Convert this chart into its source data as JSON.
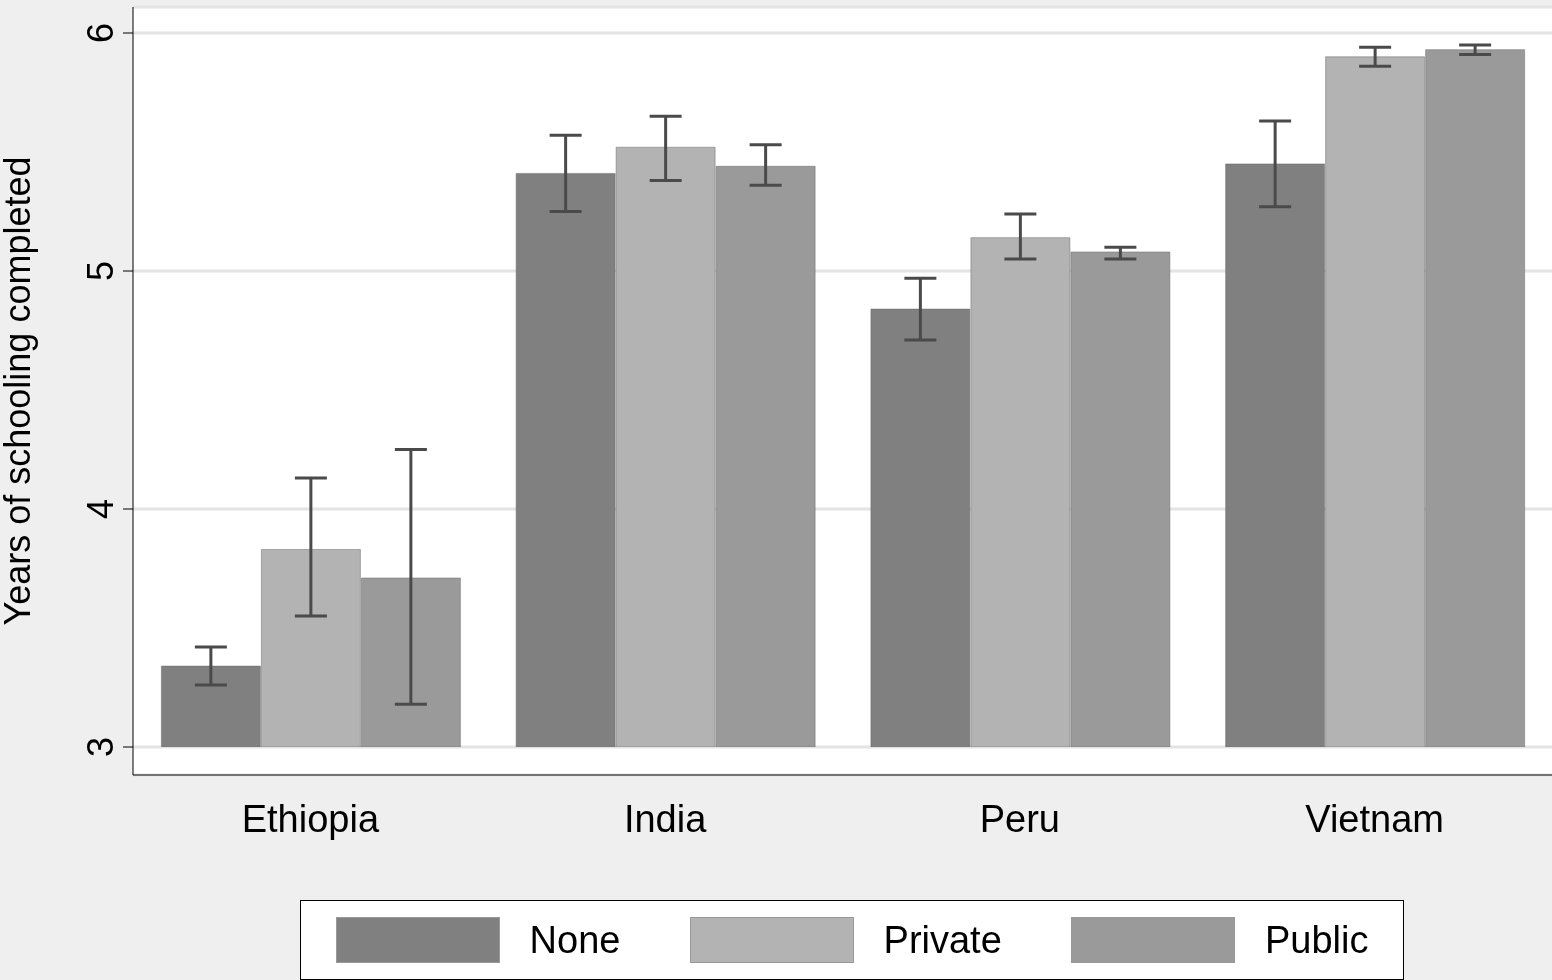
{
  "chart_data": {
    "type": "bar",
    "ylabel": "Years of schooling completed",
    "categories": [
      "Ethiopia",
      "India",
      "Peru",
      "Vietnam"
    ],
    "series": [
      {
        "name": "None",
        "color": "#808080",
        "values": [
          3.34,
          5.41,
          4.84,
          5.45
        ],
        "errors": [
          [
            3.26,
            3.42
          ],
          [
            5.25,
            5.57
          ],
          [
            4.71,
            4.97
          ],
          [
            5.27,
            5.63
          ]
        ]
      },
      {
        "name": "Private",
        "color": "#b3b3b3",
        "values": [
          3.83,
          5.52,
          5.14,
          5.9
        ],
        "errors": [
          [
            3.55,
            4.13
          ],
          [
            5.38,
            5.65
          ],
          [
            5.05,
            5.24
          ],
          [
            5.86,
            5.94
          ]
        ]
      },
      {
        "name": "Public",
        "color": "#9a9a9a",
        "values": [
          3.71,
          5.44,
          5.08,
          5.93
        ],
        "errors": [
          [
            3.18,
            4.25
          ],
          [
            5.36,
            5.53
          ],
          [
            5.05,
            5.1
          ],
          [
            5.91,
            5.95
          ]
        ]
      }
    ],
    "ylim": [
      3,
      6
    ],
    "yticks": [
      3,
      4,
      5,
      6
    ],
    "grid": "y",
    "legend": "bottom"
  }
}
